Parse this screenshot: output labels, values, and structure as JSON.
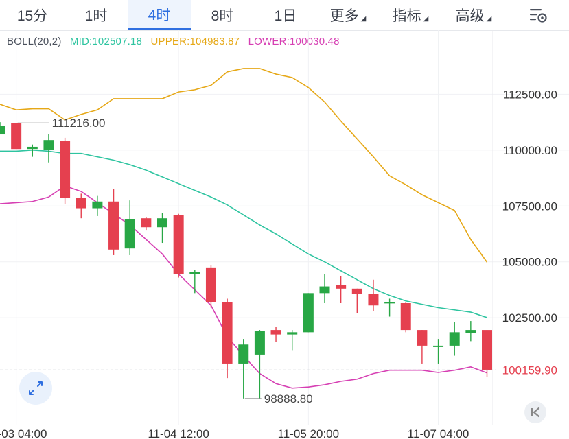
{
  "tabs": [
    {
      "label": "15分",
      "active": false
    },
    {
      "label": "1时",
      "active": false
    },
    {
      "label": "4时",
      "active": true
    },
    {
      "label": "8时",
      "active": false
    },
    {
      "label": "1日",
      "active": false
    },
    {
      "label": "更多",
      "active": false,
      "dropdown": true
    },
    {
      "label": "指标",
      "active": false,
      "dropdown": true
    },
    {
      "label": "高级",
      "active": false,
      "dropdown": true
    }
  ],
  "settings_icon": "chart-settings-icon",
  "legend": {
    "boll": "BOLL(20,2)",
    "mid": "MID:102507.18",
    "upper": "UPPER:104983.87",
    "lower": "LOWER:100030.48"
  },
  "colors": {
    "up": "#28a745",
    "down": "#e5404f",
    "mid": "#2ec4a0",
    "upper": "#e6a817",
    "lower": "#d63fb3",
    "grid": "#f0f1f4",
    "axis_text": "#333333",
    "last_price": "#e5404f",
    "accent": "#2f6fe0"
  },
  "annotations": {
    "high_label": "111216.00",
    "low_label": "98888.80"
  },
  "last_price_label": "100159.90",
  "chart_data": {
    "type": "candlestick",
    "title": "",
    "indicator": "BOLL(20,2)",
    "ylim": [
      98300,
      114200
    ],
    "y_ticks": [
      112500,
      110000,
      107500,
      105000,
      102500
    ],
    "y_tick_labels": [
      "112500.00",
      "110000.00",
      "107500.00",
      "105000.00",
      "102500.00"
    ],
    "x_tick_labels": [
      "11-03 04:00",
      "11-04 12:00",
      "11-05 20:00",
      "11-07 04:00"
    ],
    "x_tick_index": [
      1,
      11,
      19,
      27
    ],
    "grid": true,
    "candles": [
      {
        "o": 110700,
        "h": 111250,
        "l": 110700,
        "c": 111100
      },
      {
        "o": 111200,
        "h": 111216,
        "l": 110050,
        "c": 110050
      },
      {
        "o": 110050,
        "h": 110250,
        "l": 109700,
        "c": 110150
      },
      {
        "o": 110000,
        "h": 110700,
        "l": 109450,
        "c": 110450
      },
      {
        "o": 110400,
        "h": 110550,
        "l": 107600,
        "c": 107850
      },
      {
        "o": 107850,
        "h": 108050,
        "l": 106950,
        "c": 107400
      },
      {
        "o": 107400,
        "h": 107950,
        "l": 107050,
        "c": 107700
      },
      {
        "o": 107700,
        "h": 108250,
        "l": 105300,
        "c": 105550
      },
      {
        "o": 105600,
        "h": 107750,
        "l": 105300,
        "c": 106900
      },
      {
        "o": 106950,
        "h": 107000,
        "l": 106400,
        "c": 106550
      },
      {
        "o": 106550,
        "h": 107200,
        "l": 105850,
        "c": 106950
      },
      {
        "o": 107100,
        "h": 107150,
        "l": 104300,
        "c": 104450
      },
      {
        "o": 104450,
        "h": 104650,
        "l": 103600,
        "c": 104550
      },
      {
        "o": 104750,
        "h": 104850,
        "l": 102950,
        "c": 103200
      },
      {
        "o": 103200,
        "h": 103350,
        "l": 99800,
        "c": 100450
      },
      {
        "o": 100450,
        "h": 101550,
        "l": 98888.8,
        "c": 101300
      },
      {
        "o": 100850,
        "h": 101950,
        "l": 98900,
        "c": 101900
      },
      {
        "o": 101950,
        "h": 102100,
        "l": 101400,
        "c": 101750
      },
      {
        "o": 101750,
        "h": 101950,
        "l": 101050,
        "c": 101850
      },
      {
        "o": 101850,
        "h": 103600,
        "l": 101850,
        "c": 103600
      },
      {
        "o": 103600,
        "h": 104450,
        "l": 103150,
        "c": 103900
      },
      {
        "o": 103950,
        "h": 104350,
        "l": 103150,
        "c": 103800
      },
      {
        "o": 103800,
        "h": 103800,
        "l": 102700,
        "c": 103550
      },
      {
        "o": 103550,
        "h": 104200,
        "l": 102800,
        "c": 103050
      },
      {
        "o": 103150,
        "h": 103350,
        "l": 102550,
        "c": 103200
      },
      {
        "o": 103150,
        "h": 103200,
        "l": 101850,
        "c": 101950
      },
      {
        "o": 101950,
        "h": 101950,
        "l": 100450,
        "c": 101250
      },
      {
        "o": 101200,
        "h": 101550,
        "l": 100450,
        "c": 101250
      },
      {
        "o": 101250,
        "h": 102300,
        "l": 100800,
        "c": 101850
      },
      {
        "o": 101800,
        "h": 102350,
        "l": 101450,
        "c": 101950
      },
      {
        "o": 101950,
        "h": 101950,
        "l": 99850,
        "c": 100159.9
      }
    ],
    "series": [
      {
        "name": "UPPER",
        "values": [
          112050,
          111800,
          111850,
          111850,
          111350,
          111600,
          111800,
          112300,
          112300,
          112300,
          112300,
          112600,
          112700,
          112900,
          113500,
          113650,
          113650,
          113400,
          113250,
          112800,
          112150,
          111300,
          110500,
          109700,
          108850,
          108450,
          108000,
          107650,
          107300,
          106000,
          104983.87
        ]
      },
      {
        "name": "MID",
        "values": [
          109950,
          109950,
          110000,
          109950,
          109850,
          109850,
          109700,
          109550,
          109350,
          109100,
          108800,
          108500,
          108200,
          107900,
          107550,
          107100,
          106650,
          106250,
          105800,
          105350,
          105000,
          104600,
          104200,
          103800,
          103500,
          103250,
          103100,
          102950,
          102850,
          102750,
          102507.18
        ]
      },
      {
        "name": "LOWER",
        "values": [
          107600,
          107650,
          107700,
          107900,
          108400,
          108150,
          107650,
          107150,
          106650,
          106000,
          105350,
          104450,
          103750,
          103050,
          101650,
          100800,
          100000,
          99550,
          99350,
          99400,
          99500,
          99650,
          99750,
          100000,
          100150,
          100150,
          100150,
          100050,
          100150,
          100300,
          100030.48
        ]
      }
    ]
  }
}
